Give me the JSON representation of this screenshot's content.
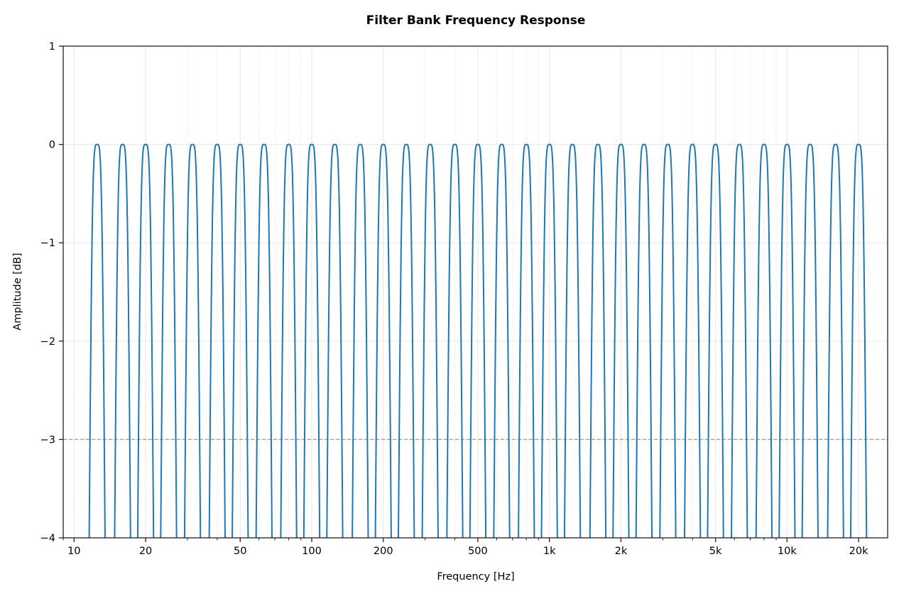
{
  "chart_data": {
    "type": "line",
    "title": "Filter Bank Frequency Response",
    "xlabel": "Frequency [Hz]",
    "ylabel": "Amplitude [dB]",
    "xscale": "log",
    "xlim": [
      9,
      26500
    ],
    "ylim": [
      -4,
      1
    ],
    "grid": true,
    "x_ticks": [
      10,
      20,
      50,
      100,
      200,
      500,
      1000,
      2000,
      5000,
      10000,
      20000
    ],
    "x_tick_labels": [
      "10",
      "20",
      "50",
      "100",
      "200",
      "500",
      "1k",
      "2k",
      "5k",
      "10k",
      "20k"
    ],
    "y_ticks": [
      1,
      0,
      -1,
      -2,
      -3,
      -4
    ],
    "y_tick_labels": [
      "1",
      "0",
      "−1",
      "−2",
      "−3",
      "−4"
    ],
    "band_center_frequencies": [
      12.5,
      16,
      20,
      25,
      31.5,
      40,
      50,
      63,
      80,
      100,
      125,
      160,
      200,
      250,
      315,
      400,
      500,
      630,
      800,
      1000,
      1250,
      1600,
      2000,
      2500,
      3150,
      4000,
      5000,
      6300,
      8000,
      10000,
      12500,
      16000,
      20000
    ],
    "band_peak_db": 0,
    "band_minus3db_halfwidth_octaves": 0.1,
    "reference_line": {
      "y": -3,
      "style": "dashed",
      "color": "#e8837f"
    },
    "series_color": "#1f77b4"
  }
}
